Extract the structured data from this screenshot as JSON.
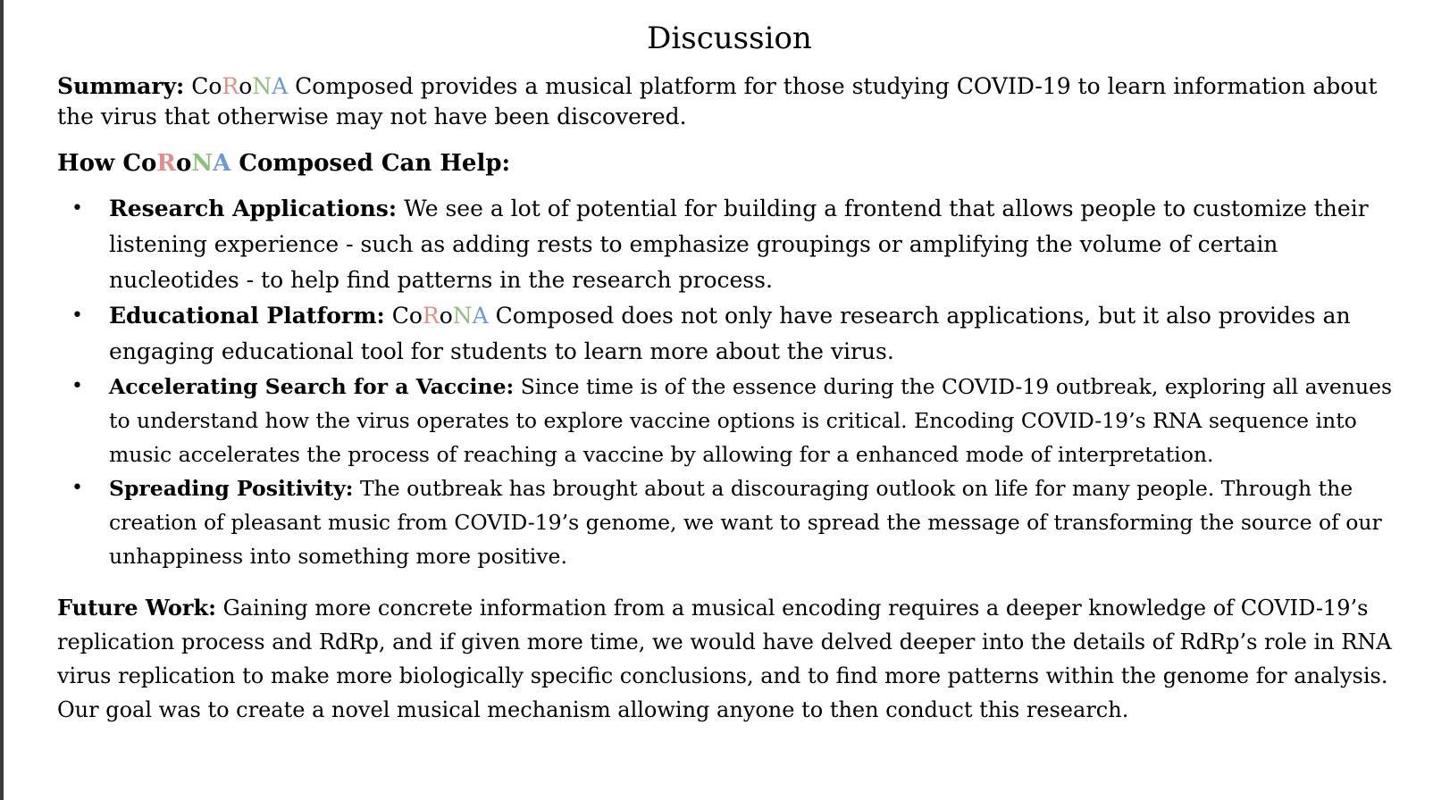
{
  "title": "Discussion",
  "brand": {
    "parts": [
      "Co",
      "R",
      "o",
      "N",
      "A"
    ],
    "colors": [
      "#000000",
      "#e0908a",
      "#000000",
      "#8fbf7a",
      "#6d99d6"
    ],
    "suffix": " Composed"
  },
  "summary": {
    "label": "Summary:",
    "text": "provides a musical platform for those studying COVID-19 to learn information about the virus that otherwise may not have been discovered."
  },
  "how_heading": {
    "prefix": "How",
    "suffix": "Can Help:"
  },
  "points": [
    {
      "label": "Research Applications:",
      "text": "We see a lot of potential for building a frontend that allows people to customize their listening experience - such as adding rests to emphasize groupings or amplifying the volume of certain nucleotides - to help find patterns in the research process."
    },
    {
      "label": "Educational Platform:",
      "text": "does not only have research applications, but it also provides an engaging educational tool for students to learn more about the virus."
    },
    {
      "label": "Accelerating Search for a Vaccine:",
      "text": "Since time is of the essence during the COVID-19 outbreak, exploring all avenues to understand how the virus operates to explore vaccine options is critical. Encoding COVID-19’s RNA sequence into music accelerates the process of reaching a vaccine by allowing for a enhanced mode of interpretation."
    },
    {
      "label": "Spreading Positivity:",
      "text": "The outbreak has brought about a discouraging outlook on life for many people. Through the creation of pleasant music from COVID-19’s genome, we want to spread the message of transforming the source of our unhappiness into something more positive."
    }
  ],
  "bullet_glyph": "•",
  "future_work": {
    "label": "Future Work:",
    "text": "Gaining more concrete information from a musical encoding requires a deeper knowledge of COVID-19’s replication process and RdRp, and if given more time, we would have delved deeper into the details of RdRp’s role in RNA virus replication to make more biologically specific conclusions, and to find more patterns within the genome for analysis. Our goal was to create a novel musical mechanism allowing anyone to then conduct this research."
  }
}
